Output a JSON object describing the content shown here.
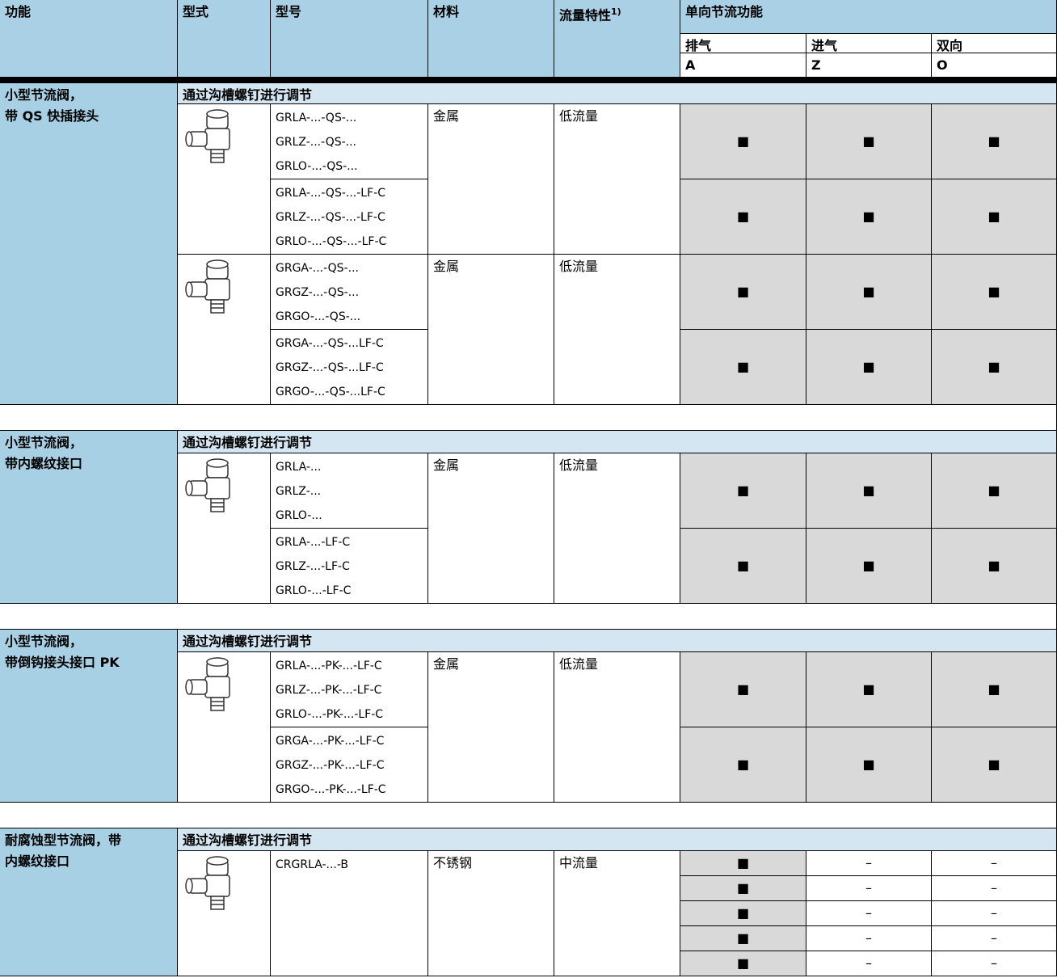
{
  "header": {
    "function": "功能",
    "style": "型式",
    "model": "型号",
    "material": "材料",
    "flow": "流量特性",
    "flow_note": "1)",
    "check_valve": "单向节流功能",
    "exhaust": "排气",
    "supply": "进气",
    "both": "双向",
    "code_a": "A",
    "code_z": "Z",
    "code_o": "O"
  },
  "sections": [
    {
      "function": [
        "小型节流阀，",
        "带 QS 快插接头"
      ],
      "adjust": "通过沟槽螺钉进行调节",
      "products": [
        {
          "material": "金属",
          "flow": "低流量",
          "variants": [
            {
              "models": [
                "GRLA-...-QS-...",
                "GRLZ-...-QS-...",
                "GRLO-...-QS-..."
              ],
              "rows": [
                [
                  "■",
                  "■",
                  "■"
                ]
              ]
            },
            {
              "models": [
                "GRLA-...-QS-...-LF-C",
                "GRLZ-...-QS-...-LF-C",
                "GRLO-...-QS-...-LF-C"
              ],
              "rows": [
                [
                  "■",
                  "■",
                  "■"
                ]
              ]
            }
          ]
        },
        {
          "material": "金属",
          "flow": "低流量",
          "variants": [
            {
              "models": [
                "GRGA-...-QS-...",
                "GRGZ-...-QS-...",
                "GRGO-...-QS-..."
              ],
              "rows": [
                [
                  "■",
                  "■",
                  "■"
                ]
              ]
            },
            {
              "models": [
                "GRGA-...-QS-...LF-C",
                "GRGZ-...-QS-...LF-C",
                "GRGO-...-QS-...LF-C"
              ],
              "rows": [
                [
                  "■",
                  "■",
                  "■"
                ]
              ]
            }
          ]
        }
      ]
    },
    {
      "function": [
        "小型节流阀，",
        "带内螺纹接口"
      ],
      "adjust": "通过沟槽螺钉进行调节",
      "products": [
        {
          "material": "金属",
          "flow": "低流量",
          "variants": [
            {
              "models": [
                "GRLA-...",
                "GRLZ-...",
                "GRLO-..."
              ],
              "rows": [
                [
                  "■",
                  "■",
                  "■"
                ]
              ]
            },
            {
              "models": [
                "GRLA-...-LF-C",
                "GRLZ-...-LF-C",
                "GRLO-...-LF-C"
              ],
              "rows": [
                [
                  "■",
                  "■",
                  "■"
                ]
              ]
            }
          ]
        }
      ]
    },
    {
      "function": [
        "小型节流阀，",
        "带倒钩接头接口 PK"
      ],
      "adjust": "通过沟槽螺钉进行调节",
      "products": [
        {
          "material": "金属",
          "flow": "低流量",
          "variants": [
            {
              "models": [
                "GRLA-...-PK-...-LF-C",
                "GRLZ-...-PK-...-LF-C",
                "GRLO-...-PK-...-LF-C"
              ],
              "rows": [
                [
                  "■",
                  "■",
                  "■"
                ]
              ]
            },
            {
              "models": [
                "GRGA-...-PK-...-LF-C",
                "GRGZ-...-PK-...-LF-C",
                "GRGO-...-PK-...-LF-C"
              ],
              "rows": [
                [
                  "■",
                  "■",
                  "■"
                ]
              ]
            }
          ]
        }
      ]
    },
    {
      "function": [
        "耐腐蚀型节流阀，带",
        "内螺纹接口"
      ],
      "adjust": "通过沟槽螺钉进行调节",
      "products": [
        {
          "material": "不锈钢",
          "flow": "中流量",
          "variants": [
            {
              "models": [
                "CRGRLA-...-B"
              ],
              "rows": [
                [
                  "■",
                  "–",
                  "–"
                ],
                [
                  "■",
                  "–",
                  "–"
                ],
                [
                  "■",
                  "–",
                  "–"
                ],
                [
                  "■",
                  "–",
                  "–"
                ],
                [
                  "■",
                  "–",
                  "–"
                ]
              ]
            }
          ]
        }
      ]
    }
  ]
}
